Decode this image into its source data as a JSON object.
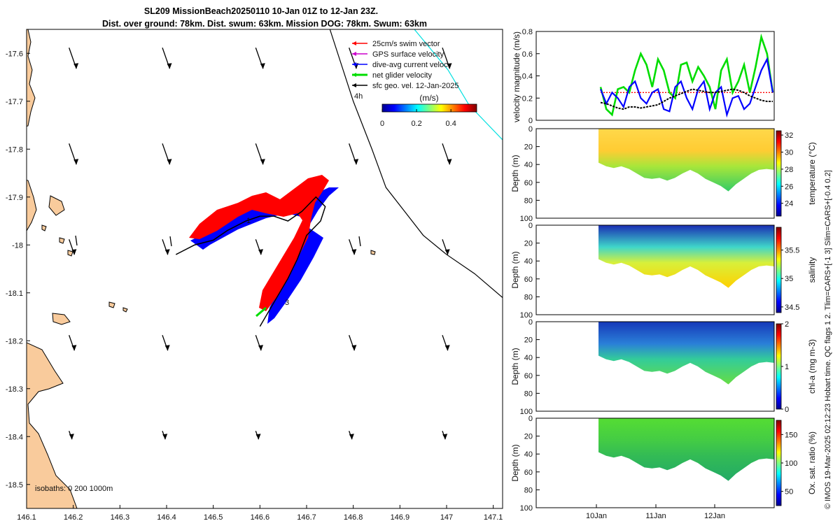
{
  "title": {
    "line1": "SL209 MissionBeach20250110 10-Jan 01Z to 12-Jan 23Z.",
    "line2": "Dist. over ground: 78km. Dist. swum: 63km. Mission DOG: 78km. Swum: 63km"
  },
  "colors": {
    "land": "#f9cb9c",
    "swim": "#ff0000",
    "gps": "#cc00cc",
    "dive_avg": "#0000ff",
    "net": "#00dd00",
    "geo": "#000000",
    "cyan_line": "#00e0e0"
  },
  "map": {
    "legend": [
      {
        "label": "25cm/s swim vector",
        "color": "#ff0000"
      },
      {
        "label": "GPS surface velocity",
        "color": "#cc00cc"
      },
      {
        "label": "dive-avg current veloc.",
        "color": "#0000ff"
      },
      {
        "label": "net glider velocity",
        "color": "#00dd00"
      },
      {
        "label": "sfc geo. vel. 12-Jan-2025",
        "color": "#000000"
      }
    ],
    "colorbar": {
      "title": "(m/s)",
      "ticks": [
        "0",
        "0.2",
        "0.4"
      ],
      "range": [
        0,
        0.55
      ]
    },
    "x_ticks": [
      "146.1",
      "146.2",
      "146.3",
      "146.4",
      "146.5",
      "146.6",
      "146.7",
      "146.8",
      "146.9",
      "147",
      "147.1"
    ],
    "y_ticks": [
      "-17.6",
      "-17.7",
      "-17.8",
      "-17.9",
      "-18",
      "-18.1",
      "-18.2",
      "-18.3",
      "-18.4",
      "-18.5"
    ],
    "xlim": [
      146.1,
      147.12
    ],
    "ylim": [
      -18.55,
      -17.55
    ],
    "isobath_label": "isobaths: 0   200   1000m",
    "day_markers": [
      "1",
      "3",
      "4h"
    ],
    "track": [
      [
        146.42,
        -18.02
      ],
      [
        146.46,
        -18.0
      ],
      [
        146.5,
        -17.99
      ],
      [
        146.53,
        -17.97
      ],
      [
        146.57,
        -17.95
      ],
      [
        146.6,
        -17.94
      ],
      [
        146.63,
        -17.94
      ],
      [
        146.66,
        -17.95
      ],
      [
        146.69,
        -17.93
      ],
      [
        146.72,
        -17.9
      ],
      [
        146.74,
        -17.92
      ],
      [
        146.73,
        -17.95
      ],
      [
        146.7,
        -17.98
      ],
      [
        146.68,
        -18.03
      ],
      [
        146.66,
        -18.07
      ],
      [
        146.63,
        -18.12
      ],
      [
        146.6,
        -18.17
      ]
    ],
    "geo_line": [
      [
        146.75,
        -17.55
      ],
      [
        146.8,
        -17.7
      ],
      [
        146.84,
        -17.8
      ],
      [
        146.87,
        -17.88
      ],
      [
        146.91,
        -17.93
      ],
      [
        146.95,
        -17.98
      ],
      [
        147.0,
        -18.02
      ],
      [
        147.06,
        -18.06
      ],
      [
        147.12,
        -18.11
      ]
    ]
  },
  "velocity_panel": {
    "ylabel": "velocity magnitude (m/s)",
    "y_ticks": [
      "0",
      "0.2",
      "0.4",
      "0.6",
      "0.8"
    ],
    "ylim": [
      0,
      0.8
    ],
    "swim_level": 0.25
  },
  "depth_panels": [
    {
      "cbar_label": "temperature (°C)",
      "ticks": [
        "24",
        "26",
        "28",
        "30",
        "32"
      ],
      "range": [
        22.5,
        32.5
      ],
      "ylabel": "Depth (m)"
    },
    {
      "cbar_label": "salinity",
      "ticks": [
        "34.5",
        "35",
        "35.5"
      ],
      "range": [
        34.4,
        35.9
      ],
      "ylabel": "Depth (m)"
    },
    {
      "cbar_label": "chl-a (mg m-3)",
      "ticks": [
        "0",
        "1",
        "2"
      ],
      "range": [
        0,
        2
      ],
      "ylabel": "Depth (m)"
    },
    {
      "cbar_label": "Ox. sat. ratio (%)",
      "ticks": [
        "50",
        "100",
        "150"
      ],
      "range": [
        25,
        175
      ],
      "ylabel": "Depth (m)"
    }
  ],
  "depth_ticks": [
    "0",
    "20",
    "40",
    "60",
    "80",
    "100"
  ],
  "time_ticks": [
    "10Jan",
    "11Jan",
    "12Jan"
  ],
  "footer": "© IMOS 19-Mar-2025 02:12:23 Hobart time. QC flags 1  2. Tlim=CARS+[-1 3] Slim=CARS+[-0.4 0.2]"
}
